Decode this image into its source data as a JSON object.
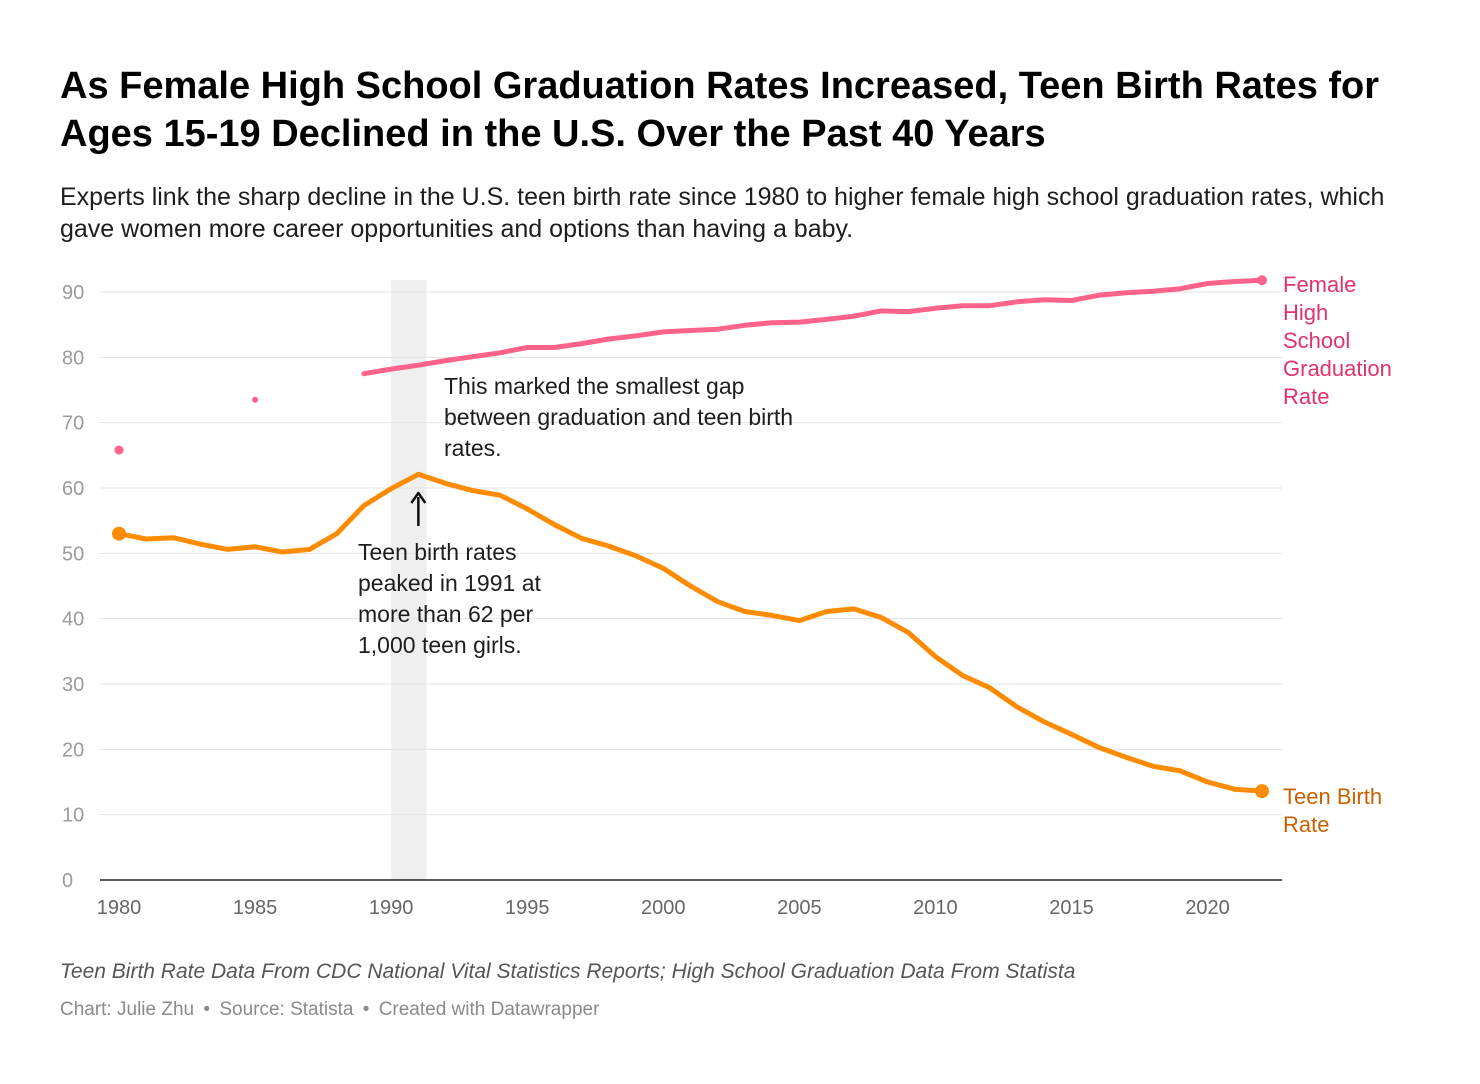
{
  "title": "As Female High School Graduation Rates Increased, Teen Birth Rates for Ages 15-19 Declined in the U.S. Over the Past 40 Years",
  "subtitle": "Experts link the sharp decline in the U.S. teen birth rate since 1980 to higher female high school graduation rates, which gave women more career opportunities and options than having a baby.",
  "notes": "Teen Birth Rate Data From CDC National Vital Statistics Reports; High School Graduation Data From Statista",
  "credits": {
    "chart": "Chart: Julie Zhu",
    "source": "Source: Statista",
    "tool": "Created with Datawrapper",
    "separator": "•"
  },
  "chart_data": {
    "type": "line",
    "title": "",
    "xlabel": "",
    "ylabel": "",
    "xlim": [
      1980,
      2022
    ],
    "ylim": [
      0,
      92
    ],
    "grid": true,
    "yticks": [
      0,
      10,
      20,
      30,
      40,
      50,
      60,
      70,
      80,
      90
    ],
    "xticks": [
      1980,
      1985,
      1990,
      1995,
      2000,
      2005,
      2010,
      2015,
      2020
    ],
    "highlight_range": [
      1990,
      1991.3
    ],
    "series": [
      {
        "name": "Female High School Graduation Rate",
        "color": "#ff6389",
        "label_color": "#e0336a",
        "label_lines": [
          "Female",
          "High",
          "School",
          "Graduation",
          "Rate"
        ],
        "isolated_points": [
          {
            "x": 1980,
            "y": 65.8
          },
          {
            "x": 1985,
            "y": 73.5
          }
        ],
        "x": [
          1989,
          1990,
          1991,
          1992,
          1993,
          1994,
          1995,
          1996,
          1997,
          1998,
          1999,
          2000,
          2001,
          2002,
          2003,
          2004,
          2005,
          2006,
          2007,
          2008,
          2009,
          2010,
          2011,
          2012,
          2013,
          2014,
          2015,
          2016,
          2017,
          2018,
          2019,
          2020,
          2021,
          2022
        ],
        "y": [
          77.5,
          78.2,
          78.8,
          79.5,
          80.1,
          80.7,
          81.5,
          81.5,
          82.1,
          82.8,
          83.3,
          83.9,
          84.1,
          84.3,
          84.9,
          85.3,
          85.4,
          85.8,
          86.3,
          87.1,
          87.0,
          87.5,
          87.9,
          87.9,
          88.5,
          88.8,
          88.7,
          89.5,
          89.9,
          90.1,
          90.5,
          91.3,
          91.6,
          91.8
        ]
      },
      {
        "name": "Teen Birth Rate",
        "color": "#ff8b00",
        "label_color": "#c96100",
        "label_lines": [
          "Teen Birth",
          "Rate"
        ],
        "x": [
          1980,
          1981,
          1982,
          1983,
          1984,
          1985,
          1986,
          1987,
          1988,
          1989,
          1990,
          1991,
          1992,
          1993,
          1994,
          1995,
          1996,
          1997,
          1998,
          1999,
          2000,
          2001,
          2002,
          2003,
          2004,
          2005,
          2006,
          2007,
          2008,
          2009,
          2010,
          2011,
          2012,
          2013,
          2014,
          2015,
          2016,
          2017,
          2018,
          2019,
          2020,
          2021,
          2022
        ],
        "y": [
          53.0,
          52.2,
          52.4,
          51.4,
          50.6,
          51.0,
          50.2,
          50.6,
          53.0,
          57.3,
          59.9,
          62.1,
          60.7,
          59.6,
          58.9,
          56.8,
          54.4,
          52.3,
          51.1,
          49.6,
          47.7,
          45.0,
          42.6,
          41.1,
          40.5,
          39.7,
          41.1,
          41.5,
          40.2,
          37.9,
          34.2,
          31.3,
          29.4,
          26.5,
          24.2,
          22.3,
          20.3,
          18.8,
          17.4,
          16.7,
          15.0,
          13.9,
          13.6
        ]
      }
    ],
    "annotations": [
      {
        "id": "gap",
        "lines": [
          "This marked the smallest gap",
          "between graduation and teen birth",
          "rates."
        ]
      },
      {
        "id": "peak",
        "lines": [
          "Teen birth rates",
          "peaked in 1991 at",
          "more than 62 per",
          "1,000 teen girls."
        ]
      }
    ]
  }
}
